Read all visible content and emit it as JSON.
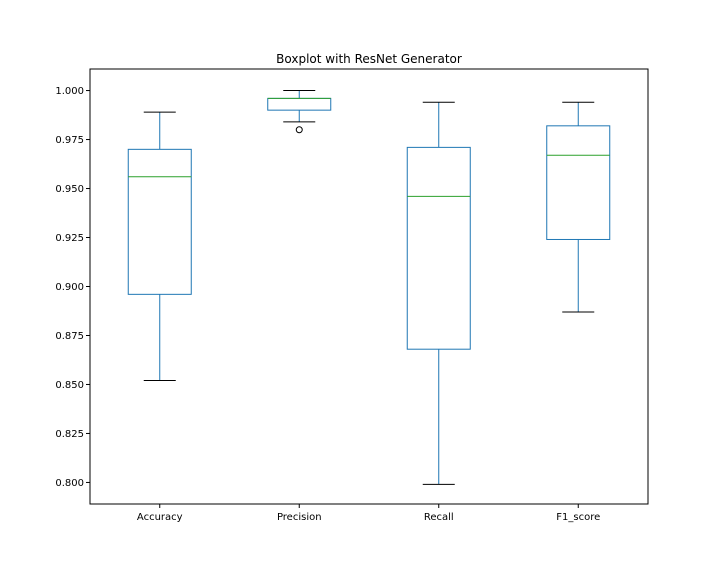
{
  "chart_data": {
    "type": "box",
    "title": "Boxplot with ResNet Generator",
    "xlabel": "",
    "ylabel": "",
    "ylim": [
      0.789,
      1.011
    ],
    "yticks": [
      "0.800",
      "0.825",
      "0.850",
      "0.875",
      "0.900",
      "0.925",
      "0.950",
      "0.975",
      "1.000"
    ],
    "grid": false,
    "colors": {
      "box": "#1f77b4",
      "median": "#2ca02c",
      "whisker": "#1f77b4",
      "cap": "#000000",
      "flier": "#000000"
    },
    "categories": [
      "Accuracy",
      "Precision",
      "Recall",
      "F1_score"
    ],
    "boxes": [
      {
        "label": "Accuracy",
        "whislo": 0.852,
        "q1": 0.896,
        "med": 0.956,
        "q3": 0.97,
        "whishi": 0.989,
        "fliers": []
      },
      {
        "label": "Precision",
        "whislo": 0.984,
        "q1": 0.99,
        "med": 0.996,
        "q3": 0.996,
        "whishi": 1.0,
        "fliers": [
          0.98
        ]
      },
      {
        "label": "Recall",
        "whislo": 0.799,
        "q1": 0.868,
        "med": 0.946,
        "q3": 0.971,
        "whishi": 0.994,
        "fliers": []
      },
      {
        "label": "F1_score",
        "whislo": 0.887,
        "q1": 0.924,
        "med": 0.967,
        "q3": 0.982,
        "whishi": 0.994,
        "fliers": []
      }
    ]
  }
}
